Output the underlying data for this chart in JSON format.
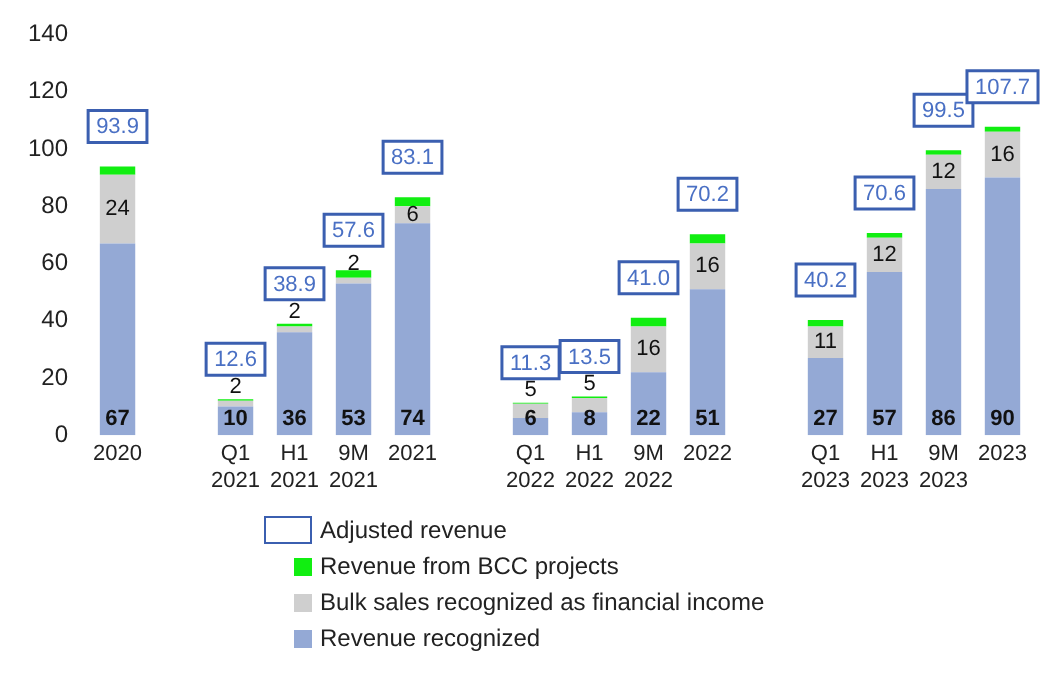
{
  "chart_data": {
    "type": "bar",
    "stacked": true,
    "categories": [
      "2020",
      null,
      "Q1 2021",
      "H1 2021",
      "9M 2021",
      "2021",
      null,
      "Q1 2022",
      "H1 2022",
      "9M 2022",
      "2022",
      null,
      "Q1 2023",
      "H1 2023",
      "9M 2023",
      "2023"
    ],
    "series": [
      {
        "name": "Revenue recognized",
        "color": "#94a9d5",
        "values": [
          67,
          null,
          10,
          36,
          53,
          74,
          null,
          6,
          8,
          22,
          51,
          null,
          27,
          57,
          86,
          90
        ],
        "value_labels": [
          "67",
          null,
          "10",
          "36",
          "53",
          "74",
          null,
          "6",
          "8",
          "22",
          "51",
          null,
          "27",
          "57",
          "86",
          "90"
        ]
      },
      {
        "name": "Bulk sales recognized as financial income",
        "color": "#cfcfcf",
        "values": [
          24,
          null,
          2,
          2,
          2,
          6,
          null,
          5,
          5,
          16,
          16,
          null,
          11,
          12,
          12,
          16
        ],
        "value_labels": [
          "24",
          null,
          "2",
          "2",
          "2",
          "6",
          null,
          "5",
          "5",
          "16",
          "16",
          null,
          "11",
          "12",
          "12",
          "16"
        ]
      },
      {
        "name": "Revenue from BCC projects",
        "color": "#11ee11",
        "values": [
          2.9,
          null,
          0.6,
          0.9,
          2.6,
          3.1,
          null,
          0.3,
          0.5,
          3.0,
          3.2,
          null,
          2.2,
          1.6,
          1.5,
          1.7
        ]
      }
    ],
    "totals": [
      "93.9",
      null,
      "12.6",
      "38.9",
      "57.6",
      "83.1",
      null,
      "11.3",
      "13.5",
      "41.0",
      "70.2",
      null,
      "40.2",
      "70.6",
      "99.5",
      "107.7"
    ],
    "annotations": [
      "Adjusted revenue"
    ],
    "ylim": [
      0,
      140
    ],
    "yticks": [
      0,
      20,
      40,
      60,
      80,
      100,
      120,
      140
    ],
    "grid": false,
    "legend": "bottom"
  }
}
